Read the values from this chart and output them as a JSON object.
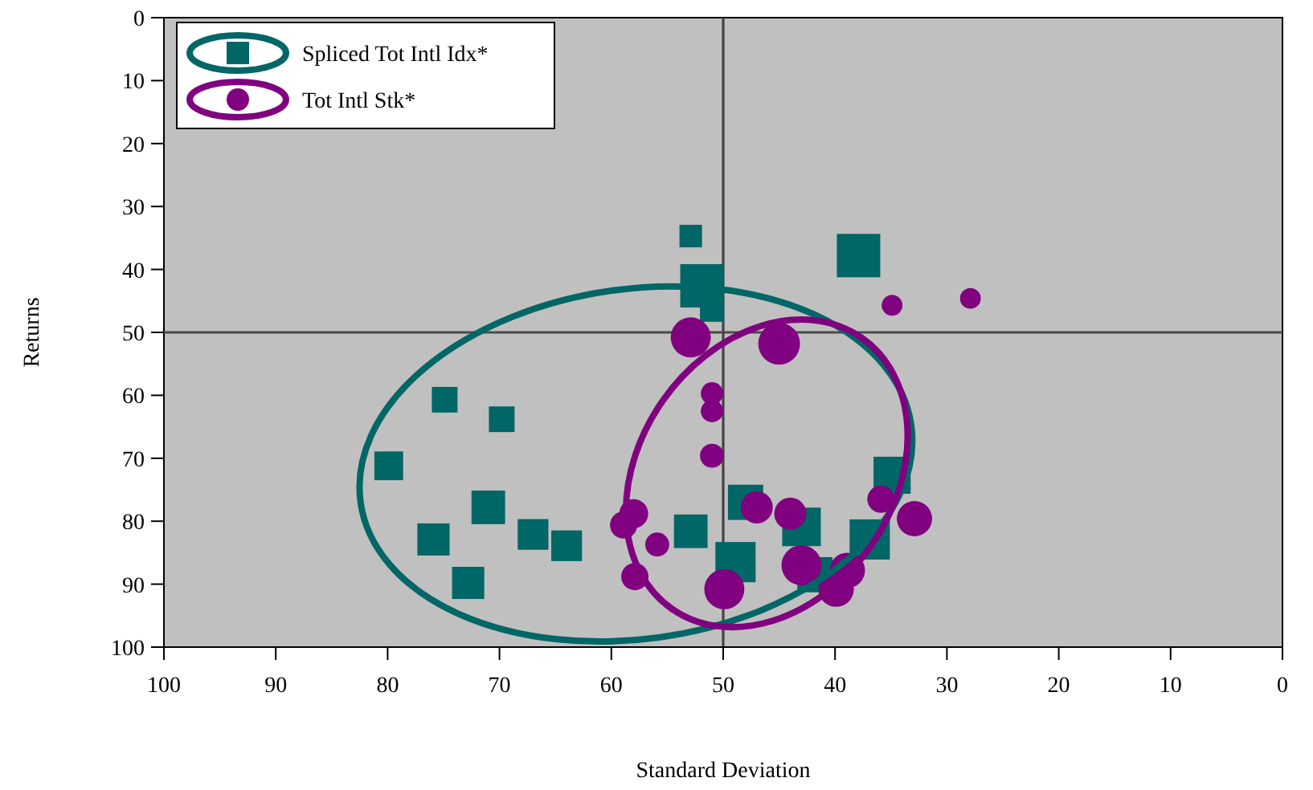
{
  "chart_data": {
    "type": "bubble",
    "xlabel": "Standard Deviation",
    "ylabel": "Returns",
    "xlim": [
      100,
      0
    ],
    "ylim": [
      100,
      0
    ],
    "xticks": [
      100,
      90,
      80,
      70,
      60,
      50,
      40,
      30,
      20,
      10,
      0
    ],
    "yticks": [
      100,
      90,
      80,
      70,
      60,
      50,
      40,
      30,
      20,
      10,
      0
    ],
    "legend": "top left",
    "grid": false,
    "ref_lines": [
      {
        "axis": "x",
        "value": 50
      },
      {
        "axis": "y",
        "value": 50
      }
    ],
    "series": [
      {
        "name": "Spliced Tot Intl Idx*",
        "color": "#006666",
        "marker": "square",
        "x": [
          52.9,
          51.9,
          51,
          37.9,
          74.9,
          69.8,
          79.9,
          71,
          75.9,
          67,
          64,
          72.8,
          52.9,
          48.9,
          48,
          43,
          36.9,
          34.9,
          41.8
        ],
        "values": [
          34.7,
          42.6,
          46.4,
          37.8,
          60.7,
          63.8,
          71.2,
          77.8,
          82.9,
          82.1,
          83.9,
          89.8,
          81.6,
          86.5,
          77,
          80.9,
          82.9,
          72.7,
          88.5
        ],
        "sizes": [
          0.27,
          1,
          0.31,
          1,
          0.35,
          0.35,
          0.44,
          0.6,
          0.55,
          0.5,
          0.5,
          0.55,
          0.6,
          0.86,
          0.66,
          0.79,
          0.86,
          0.73,
          0.66
        ]
      },
      {
        "name": "Tot Intl Stk*",
        "color": "#800080",
        "marker": "circle",
        "x": [
          52.9,
          45,
          34.9,
          27.9,
          51,
          51,
          51,
          47,
          44,
          35.9,
          32.9,
          58,
          58.9,
          55.9,
          57.9,
          49.9,
          43,
          39.9,
          38.9
        ],
        "values": [
          50.8,
          51.8,
          45.7,
          44.6,
          59.7,
          62.5,
          69.6,
          77.8,
          78.8,
          76.5,
          79.6,
          78.8,
          80.6,
          83.7,
          88.8,
          90.8,
          87,
          90.8,
          87.8
        ],
        "sizes": [
          0.67,
          0.73,
          0.18,
          0.18,
          0.21,
          0.21,
          0.24,
          0.43,
          0.43,
          0.31,
          0.52,
          0.35,
          0.31,
          0.24,
          0.31,
          0.67,
          0.67,
          0.52,
          0.52
        ]
      }
    ]
  }
}
